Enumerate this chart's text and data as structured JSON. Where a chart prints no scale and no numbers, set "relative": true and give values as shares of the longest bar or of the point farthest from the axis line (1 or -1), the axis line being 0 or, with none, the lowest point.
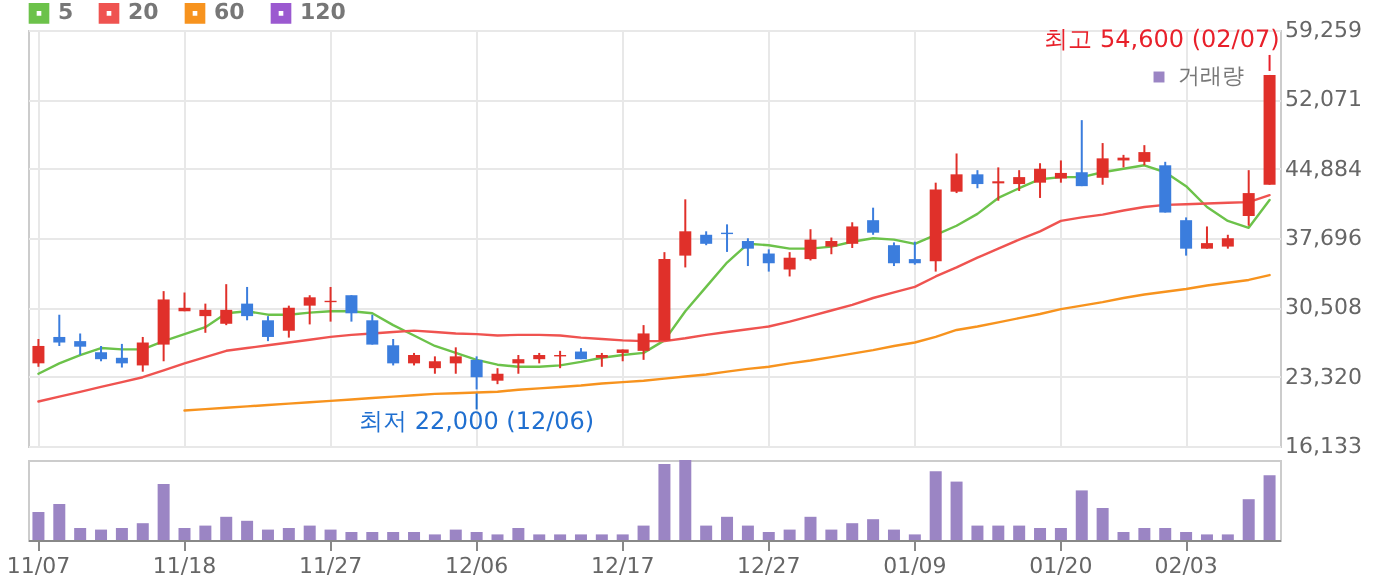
{
  "chart_data": [
    {
      "type": "candlestick",
      "categories": [
        "11/07",
        null,
        null,
        null,
        null,
        null,
        null,
        "11/18",
        null,
        null,
        null,
        null,
        null,
        null,
        "11/27",
        null,
        null,
        null,
        null,
        null,
        null,
        "12/06",
        null,
        null,
        null,
        null,
        null,
        null,
        "12/17",
        null,
        null,
        null,
        null,
        null,
        null,
        "12/27",
        null,
        null,
        null,
        null,
        null,
        null,
        "01/09",
        null,
        null,
        null,
        null,
        null,
        null,
        "01/20",
        null,
        null,
        null,
        null,
        null,
        "02/03",
        null,
        null,
        null,
        null
      ],
      "ohlc": [
        [
          24704,
          27225,
          24344,
          26505
        ],
        [
          27437,
          29741,
          26501,
          26861
        ],
        [
          27005,
          27797,
          25565,
          26429
        ],
        [
          25853,
          26501,
          24917,
          25133
        ],
        [
          25277,
          26717,
          24269,
          24701
        ],
        [
          24485,
          27437,
          23837,
          26861
        ],
        [
          26645,
          32189,
          24917,
          31325
        ],
        [
          30101,
          32045,
          30101,
          30461
        ],
        [
          29597,
          30893,
          27869,
          30245
        ],
        [
          28805,
          32909,
          28661,
          30245
        ],
        [
          30893,
          32621,
          29165,
          29597
        ],
        [
          29165,
          29597,
          27005,
          27437
        ],
        [
          28090,
          30683,
          27370,
          30467
        ],
        [
          30683,
          31763,
          28738,
          31547
        ],
        [
          31043,
          32621,
          29027,
          31187
        ],
        [
          31763,
          31763,
          29027,
          29890
        ],
        [
          29165,
          29741,
          26645,
          26645
        ],
        [
          26573,
          27225,
          24485,
          24701
        ],
        [
          24701,
          25781,
          24485,
          25565
        ],
        [
          24200,
          25425,
          23624,
          24917
        ],
        [
          24701,
          26361,
          23624,
          25425
        ],
        [
          25065,
          25425,
          22000,
          23264
        ],
        [
          22904,
          24200,
          22544,
          23624
        ],
        [
          24701,
          25565,
          23624,
          25133
        ],
        [
          25133,
          25781,
          24701,
          25565
        ],
        [
          25421,
          25997,
          24200,
          25565
        ],
        [
          25925,
          26285,
          25133,
          25133
        ],
        [
          25277,
          25781,
          24344,
          25565
        ],
        [
          25781,
          26141,
          24917,
          26141
        ],
        [
          25997,
          28666,
          25065,
          27802
        ],
        [
          27082,
          36229,
          27082,
          35509
        ],
        [
          35869,
          41704,
          34645,
          38390
        ],
        [
          38030,
          38390,
          36949,
          37094
        ],
        [
          38246,
          39111,
          36253,
          38102
        ],
        [
          37382,
          37670,
          34789,
          36590
        ],
        [
          36086,
          36518,
          34213,
          35078
        ],
        [
          34429,
          36229,
          33709,
          35653
        ],
        [
          35509,
          38606,
          35365,
          37526
        ],
        [
          36806,
          37742,
          36013,
          37382
        ],
        [
          37094,
          39327,
          36662,
          38894
        ],
        [
          39543,
          40839,
          38030,
          38246
        ],
        [
          36950,
          37238,
          34789,
          35078
        ],
        [
          35509,
          37310,
          34933,
          35078
        ],
        [
          35293,
          43432,
          34213,
          42712
        ],
        [
          42496,
          46458,
          42352,
          44297
        ],
        [
          44297,
          44729,
          42856,
          43288
        ],
        [
          43360,
          45017,
          41560,
          43576
        ],
        [
          43288,
          44729,
          42568,
          44009
        ],
        [
          43432,
          45449,
          41848,
          44873
        ],
        [
          43865,
          45737,
          43432,
          44441
        ],
        [
          44513,
          49915,
          43072,
          43072
        ],
        [
          43937,
          47538,
          43216,
          45953
        ],
        [
          45737,
          46314,
          45017,
          46025
        ],
        [
          45593,
          47322,
          45233,
          46602
        ],
        [
          45233,
          45593,
          40335,
          40335
        ],
        [
          39543,
          39831,
          35869,
          36590
        ],
        [
          36590,
          38894,
          36590,
          37166
        ],
        [
          36806,
          38030,
          36590,
          37670
        ],
        [
          39975,
          44729,
          38966,
          42352
        ],
        [
          43216,
          54600,
          43216,
          54600
        ]
      ],
      "colors": [
        "#e0302a",
        "#3b7ddd",
        "#3b7ddd",
        "#3b7ddd",
        "#3b7ddd",
        "#e0302a",
        "#e0302a",
        "#e0302a",
        "#e0302a",
        "#e0302a",
        "#3b7ddd",
        "#3b7ddd",
        "#e0302a",
        "#e0302a",
        "#e0302a",
        "#3b7ddd",
        "#3b7ddd",
        "#3b7ddd",
        "#e0302a",
        "#e0302a",
        "#e0302a",
        "#3b7ddd",
        "#e0302a",
        "#e0302a",
        "#e0302a",
        "#e0302a",
        "#3b7ddd",
        "#e0302a",
        "#e0302a",
        "#e0302a",
        "#e0302a",
        "#e0302a",
        "#3b7ddd",
        "#3b7ddd",
        "#3b7ddd",
        "#3b7ddd",
        "#e0302a",
        "#e0302a",
        "#e0302a",
        "#e0302a",
        "#3b7ddd",
        "#3b7ddd",
        "#3b7ddd",
        "#e0302a",
        "#e0302a",
        "#3b7ddd",
        "#e0302a",
        "#e0302a",
        "#e0302a",
        "#e0302a",
        "#3b7ddd",
        "#e0302a",
        "#e0302a",
        "#e0302a",
        "#3b7ddd",
        "#3b7ddd",
        "#e0302a",
        "#e0302a",
        "#e0302a",
        "#e0302a"
      ],
      "series": [
        {
          "name": "5",
          "type": "line",
          "color": "#6cc24a",
          "values": [
            23624,
            24701,
            25565,
            26289,
            26145,
            26145,
            27009,
            27730,
            28450,
            29890,
            30106,
            29746,
            29746,
            29962,
            30106,
            30106,
            29890,
            28667,
            27586,
            26505,
            25785,
            25065,
            24561,
            24345,
            24345,
            24489,
            24849,
            25281,
            25569,
            25785,
            27082,
            30106,
            32627,
            35149,
            37094,
            36950,
            36590,
            36590,
            36806,
            37310,
            37670,
            37526,
            37094,
            38030,
            38967,
            40193,
            41848,
            42856,
            43793,
            44009,
            44009,
            44513,
            44873,
            45233,
            44513,
            43072,
            40911,
            39471,
            38750,
            41632
          ]
        },
        {
          "name": "20",
          "type": "line",
          "color": "#ef5350",
          "values": [
            20743,
            21247,
            21751,
            22256,
            22760,
            23264,
            23984,
            24704,
            25353,
            26001,
            26289,
            26577,
            26865,
            27154,
            27442,
            27658,
            27802,
            27946,
            28090,
            27946,
            27802,
            27730,
            27586,
            27658,
            27658,
            27586,
            27370,
            27226,
            27082,
            27010,
            27010,
            27298,
            27658,
            27946,
            28234,
            28522,
            29027,
            29603,
            30179,
            30755,
            31475,
            32051,
            32627,
            33709,
            34645,
            35653,
            36590,
            37526,
            38390,
            39471,
            39831,
            40119,
            40551,
            40911,
            41127,
            41199,
            41271,
            41343,
            41416,
            42136
          ]
        },
        {
          "name": "60",
          "type": "line",
          "color": "#f7931e",
          "values": [
            null,
            null,
            null,
            null,
            null,
            null,
            null,
            19807,
            19951,
            20095,
            20239,
            20383,
            20527,
            20671,
            20815,
            20959,
            21103,
            21247,
            21391,
            21535,
            21607,
            21679,
            21751,
            21967,
            22111,
            22256,
            22400,
            22616,
            22760,
            22904,
            23120,
            23336,
            23552,
            23840,
            24128,
            24345,
            24704,
            24993,
            25353,
            25713,
            26073,
            26505,
            26865,
            27442,
            28162,
            28522,
            28954,
            29387,
            29819,
            30323,
            30683,
            31043,
            31475,
            31835,
            32124,
            32412,
            32772,
            33060,
            33348,
            33853
          ]
        },
        {
          "name": "120",
          "type": "line",
          "color": "#9b59d0",
          "values": [
            null,
            null,
            null,
            null,
            null,
            null,
            null,
            null,
            null,
            null,
            null,
            null,
            null,
            null,
            null,
            null,
            null,
            null,
            null,
            null,
            null,
            null,
            null,
            null,
            null,
            null,
            null,
            null,
            null,
            null,
            null,
            null,
            null,
            null,
            null,
            null,
            null,
            null,
            null,
            null,
            null,
            null,
            null,
            null,
            null,
            null,
            null,
            null,
            null,
            null,
            null,
            null,
            null,
            null,
            null,
            null,
            null,
            null,
            null,
            null
          ]
        }
      ],
      "ylim": [
        16133,
        59259
      ],
      "yticks": [
        {
          "value": 16133,
          "label": "16,133"
        },
        {
          "value": 23320,
          "label": "23,320"
        },
        {
          "value": 30508,
          "label": "30,508"
        },
        {
          "value": 37696,
          "label": "37,696"
        },
        {
          "value": 44884,
          "label": "44,884"
        },
        {
          "value": 52071,
          "label": "52,071"
        },
        {
          "value": 59259,
          "label": "59,259"
        }
      ],
      "grid": true,
      "legend": "top left",
      "tick_labels": "y",
      "annotations": [
        {
          "text": "최고 54,600 (02/07)",
          "y": 54600
        },
        {
          "text": "최저 22,000 (12/06)",
          "x": "12/06",
          "y": 22000
        }
      ]
    },
    {
      "type": "bar",
      "relative": true,
      "legend": "top right",
      "categories": [
        "11/07",
        null,
        null,
        null,
        null,
        null,
        null,
        "11/18",
        null,
        null,
        null,
        null,
        null,
        null,
        "11/27",
        null,
        null,
        null,
        null,
        null,
        null,
        "12/06",
        null,
        null,
        null,
        null,
        null,
        null,
        "12/17",
        null,
        null,
        null,
        null,
        null,
        null,
        "12/27",
        null,
        null,
        null,
        null,
        null,
        null,
        "01/09",
        null,
        null,
        null,
        null,
        null,
        null,
        "01/20",
        null,
        null,
        null,
        null,
        null,
        "02/03",
        null,
        null,
        null,
        null
      ],
      "series": [
        {
          "name": "거래량",
          "color": "#9b85c4",
          "values": [
            0.35,
            0.45,
            0.15,
            0.13,
            0.15,
            0.21,
            0.7,
            0.15,
            0.18,
            0.29,
            0.24,
            0.13,
            0.15,
            0.18,
            0.13,
            0.1,
            0.1,
            0.1,
            0.1,
            0.07,
            0.13,
            0.1,
            0.07,
            0.15,
            0.07,
            0.07,
            0.07,
            0.07,
            0.07,
            0.18,
            0.95,
            1,
            0.18,
            0.29,
            0.18,
            0.1,
            0.13,
            0.29,
            0.13,
            0.21,
            0.26,
            0.13,
            0.07,
            0.86,
            0.73,
            0.18,
            0.18,
            0.18,
            0.15,
            0.15,
            0.62,
            0.4,
            0.1,
            0.15,
            0.15,
            0.1,
            0.07,
            0.07,
            0.51,
            0.81
          ]
        }
      ],
      "tick_labels": "x"
    }
  ]
}
